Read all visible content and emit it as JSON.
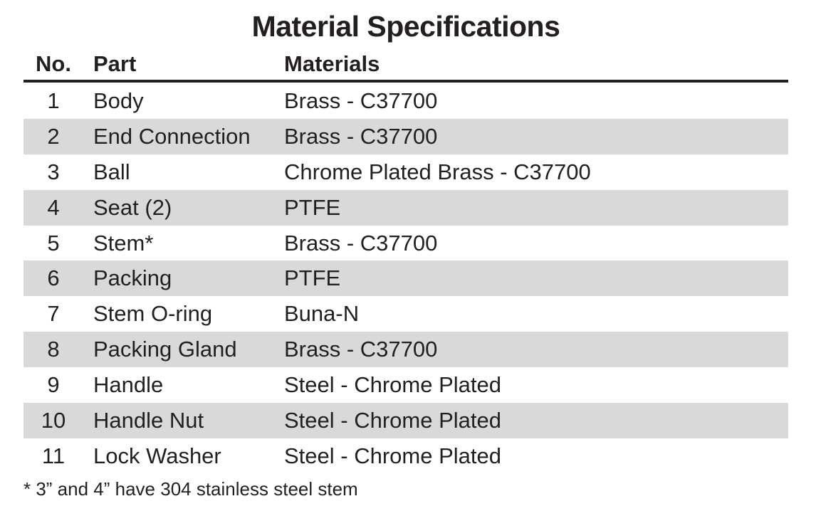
{
  "title": "Material Specifications",
  "columns": {
    "no": "No.",
    "part": "Part",
    "materials": "Materials"
  },
  "rows": [
    {
      "no": "1",
      "part": "Body",
      "material": "Brass - C37700"
    },
    {
      "no": "2",
      "part": "End Connection",
      "material": "Brass - C37700"
    },
    {
      "no": "3",
      "part": "Ball",
      "material": "Chrome Plated Brass - C37700"
    },
    {
      "no": "4",
      "part": "Seat (2)",
      "material": "PTFE"
    },
    {
      "no": "5",
      "part": "Stem*",
      "material": "Brass - C37700"
    },
    {
      "no": "6",
      "part": "Packing",
      "material": "PTFE"
    },
    {
      "no": "7",
      "part": "Stem O-ring",
      "material": "Buna-N"
    },
    {
      "no": "8",
      "part": "Packing Gland",
      "material": "Brass - C37700"
    },
    {
      "no": "9",
      "part": "Handle",
      "material": "Steel - Chrome Plated"
    },
    {
      "no": "10",
      "part": "Handle Nut",
      "material": "Steel - Chrome Plated"
    },
    {
      "no": "11",
      "part": "Lock Washer",
      "material": "Steel - Chrome Plated"
    }
  ],
  "footnote": "* 3” and 4” have 304 stainless steel stem",
  "colors": {
    "text": "#231f20",
    "row_shade": "#d9d9da",
    "background": "#ffffff"
  }
}
